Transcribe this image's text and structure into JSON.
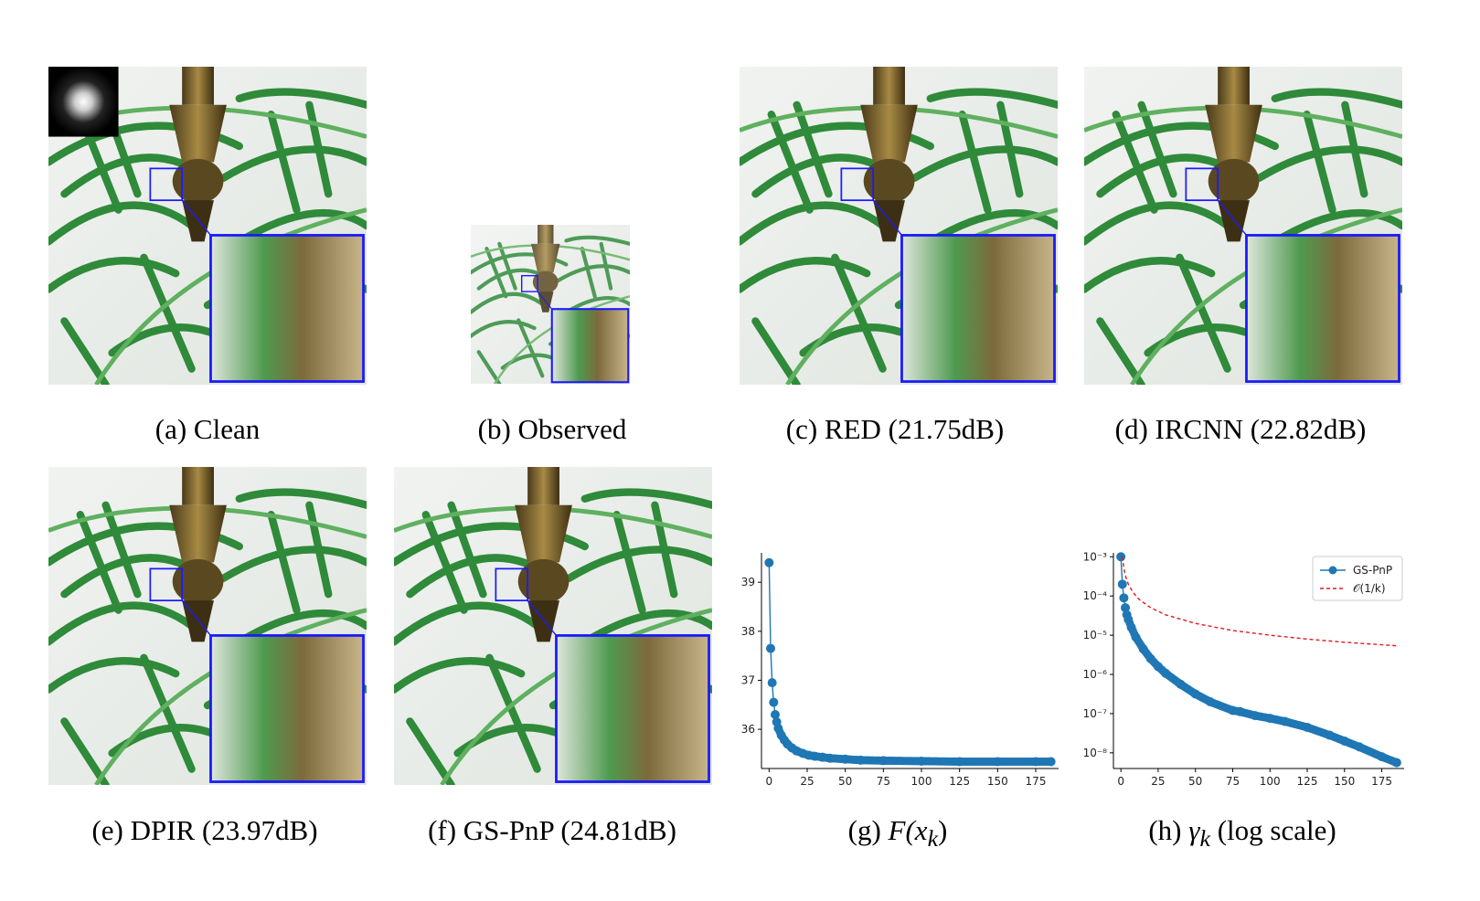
{
  "figure": {
    "panels": [
      {
        "id": "a",
        "caption": "(a) Clean"
      },
      {
        "id": "b",
        "caption": "(b) Observed"
      },
      {
        "id": "c",
        "caption": "(c) RED (21.75dB)"
      },
      {
        "id": "d",
        "caption": "(d) IRCNN (22.82dB)"
      },
      {
        "id": "e",
        "caption": "(e) DPIR (23.97dB)"
      },
      {
        "id": "f",
        "caption": "(f) GS-PnP (24.81dB)"
      }
    ],
    "g_caption_prefix": "(g) ",
    "g_caption_math": "F(x",
    "g_caption_sub": "k",
    "g_caption_suffix": ")",
    "h_caption_prefix": "(h) ",
    "h_caption_math": "γ",
    "h_caption_sub": "k",
    "h_caption_suffix": " (log scale)"
  },
  "colors": {
    "zoom_box": "#1a1aff",
    "series_blue": "#1f77b4",
    "ref_red": "#e41a1c",
    "foliage": "#3a8a3a",
    "background": "#e8ece8"
  },
  "chart_data": [
    {
      "type": "line",
      "title": "",
      "xlabel": "",
      "ylabel": "",
      "xlim": [
        -5,
        190
      ],
      "ylim": [
        35.2,
        39.6
      ],
      "xticks": [
        0,
        25,
        50,
        75,
        100,
        125,
        150,
        175
      ],
      "yticks": [
        36,
        37,
        38,
        39
      ],
      "grid": false,
      "series": [
        {
          "values_desc": "F(x_k)",
          "x": [
            0,
            1,
            2,
            3,
            4,
            5,
            6,
            8,
            10,
            12,
            15,
            18,
            22,
            26,
            30,
            35,
            40,
            50,
            60,
            75,
            100,
            125,
            150,
            175,
            185
          ],
          "y": [
            39.4,
            37.65,
            36.95,
            36.55,
            36.3,
            36.15,
            36.02,
            35.88,
            35.78,
            35.7,
            35.62,
            35.56,
            35.51,
            35.47,
            35.45,
            35.43,
            35.41,
            35.39,
            35.37,
            35.36,
            35.35,
            35.34,
            35.34,
            35.34,
            35.34
          ]
        }
      ]
    },
    {
      "type": "line",
      "title": "",
      "xlabel": "",
      "ylabel": "",
      "xlim": [
        -5,
        190
      ],
      "yscale": "log",
      "ylim_exp": [
        -8.4,
        -2.9
      ],
      "xticks": [
        0,
        25,
        50,
        75,
        100,
        125,
        150,
        175
      ],
      "ytick_labels": [
        "10⁻³",
        "10⁻⁴",
        "10⁻⁵",
        "10⁻⁶",
        "10⁻⁷",
        "10⁻⁸"
      ],
      "ytick_exps": [
        -3,
        -4,
        -5,
        -6,
        -7,
        -8
      ],
      "legend": "top-right",
      "legend_labels": [
        "GS-PnP",
        "𝒪(1/k)"
      ],
      "grid": false,
      "series": [
        {
          "name": "GS-PnP",
          "x": [
            0,
            1,
            2,
            3,
            4,
            5,
            7,
            10,
            15,
            20,
            25,
            30,
            40,
            50,
            60,
            75,
            80,
            90,
            100,
            110,
            125,
            140,
            150,
            160,
            175,
            185
          ],
          "log10_y": [
            -3.0,
            -3.7,
            -4.05,
            -4.3,
            -4.48,
            -4.6,
            -4.8,
            -5.05,
            -5.35,
            -5.6,
            -5.8,
            -5.97,
            -6.25,
            -6.5,
            -6.7,
            -6.92,
            -6.95,
            -7.05,
            -7.12,
            -7.2,
            -7.35,
            -7.55,
            -7.7,
            -7.85,
            -8.1,
            -8.25
          ]
        },
        {
          "name": "𝒪(1/k)",
          "x": [
            1,
            2,
            3,
            5,
            8,
            12,
            20,
            30,
            50,
            75,
            100,
            125,
            150,
            185
          ],
          "log10_y": [
            -3.0,
            -3.3,
            -3.48,
            -3.7,
            -3.9,
            -4.08,
            -4.3,
            -4.48,
            -4.7,
            -4.88,
            -5.0,
            -5.1,
            -5.18,
            -5.27
          ]
        }
      ]
    }
  ]
}
